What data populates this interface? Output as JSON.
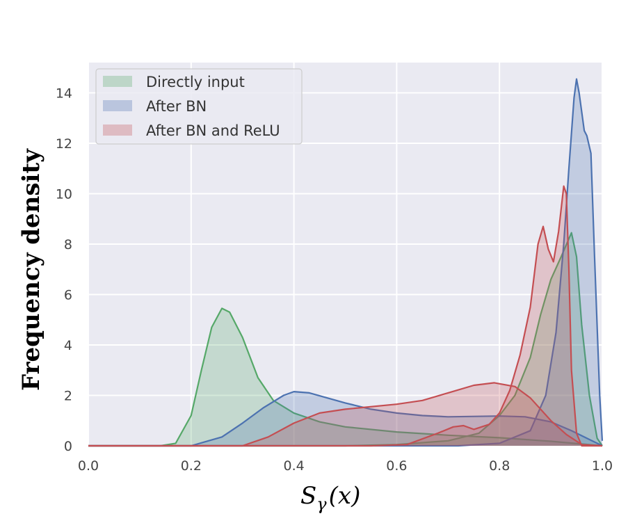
{
  "chart_data": {
    "type": "area",
    "xlabel": "S",
    "xlabel_subscript": "γ",
    "xlabel_suffix": "(x)",
    "ylabel": "Frequency density",
    "xlim": [
      0.0,
      1.0
    ],
    "ylim": [
      0,
      15.2
    ],
    "xticks": [
      "0.0",
      "0.2",
      "0.4",
      "0.6",
      "0.8",
      "1.0"
    ],
    "yticks": [
      "0",
      "2",
      "4",
      "6",
      "8",
      "10",
      "12",
      "14"
    ],
    "grid": true,
    "legend_position": "top-left",
    "background": "#eaeaf2",
    "series": [
      {
        "name": "Directly input",
        "color": "#55a868",
        "points": [
          [
            0.0,
            0
          ],
          [
            0.14,
            0
          ],
          [
            0.17,
            0.1
          ],
          [
            0.2,
            1.2
          ],
          [
            0.22,
            3.0
          ],
          [
            0.24,
            4.7
          ],
          [
            0.26,
            5.45
          ],
          [
            0.275,
            5.3
          ],
          [
            0.3,
            4.3
          ],
          [
            0.33,
            2.7
          ],
          [
            0.36,
            1.8
          ],
          [
            0.4,
            1.3
          ],
          [
            0.45,
            0.95
          ],
          [
            0.5,
            0.75
          ],
          [
            0.6,
            0.55
          ],
          [
            0.7,
            0.42
          ],
          [
            0.8,
            0.32
          ],
          [
            0.9,
            0.18
          ],
          [
            1.0,
            0.0
          ]
        ]
      },
      {
        "name": "Directly input",
        "color": "#55a868",
        "points": [
          [
            0.0,
            0
          ],
          [
            0.5,
            0
          ],
          [
            0.6,
            0.05
          ],
          [
            0.7,
            0.2
          ],
          [
            0.76,
            0.5
          ],
          [
            0.8,
            1.2
          ],
          [
            0.83,
            2.0
          ],
          [
            0.86,
            3.5
          ],
          [
            0.88,
            5.2
          ],
          [
            0.9,
            6.6
          ],
          [
            0.92,
            7.5
          ],
          [
            0.94,
            8.45
          ],
          [
            0.95,
            7.5
          ],
          [
            0.96,
            4.8
          ],
          [
            0.975,
            2.0
          ],
          [
            0.99,
            0.3
          ],
          [
            1.0,
            0
          ]
        ]
      },
      {
        "name": "After BN",
        "color": "#4c72b0",
        "points": [
          [
            0.0,
            0
          ],
          [
            0.2,
            0
          ],
          [
            0.26,
            0.35
          ],
          [
            0.3,
            0.9
          ],
          [
            0.34,
            1.5
          ],
          [
            0.38,
            2.0
          ],
          [
            0.4,
            2.15
          ],
          [
            0.43,
            2.1
          ],
          [
            0.5,
            1.7
          ],
          [
            0.55,
            1.45
          ],
          [
            0.6,
            1.3
          ],
          [
            0.65,
            1.2
          ],
          [
            0.7,
            1.15
          ],
          [
            0.8,
            1.18
          ],
          [
            0.85,
            1.15
          ],
          [
            0.9,
            0.95
          ],
          [
            0.94,
            0.6
          ],
          [
            0.97,
            0.3
          ],
          [
            1.0,
            0
          ]
        ]
      },
      {
        "name": "After BN",
        "color": "#4c72b0",
        "points": [
          [
            0.0,
            0
          ],
          [
            0.72,
            0
          ],
          [
            0.8,
            0.1
          ],
          [
            0.86,
            0.6
          ],
          [
            0.89,
            2.0
          ],
          [
            0.91,
            4.5
          ],
          [
            0.925,
            8.0
          ],
          [
            0.935,
            11.0
          ],
          [
            0.945,
            13.8
          ],
          [
            0.95,
            14.55
          ],
          [
            0.955,
            14.0
          ],
          [
            0.965,
            12.5
          ],
          [
            0.97,
            12.3
          ],
          [
            0.978,
            11.6
          ],
          [
            0.985,
            7.5
          ],
          [
            0.995,
            2.0
          ],
          [
            1.0,
            0.2
          ]
        ]
      },
      {
        "name": "After BN and ReLU",
        "color": "#c44e52",
        "points": [
          [
            0.0,
            0
          ],
          [
            0.3,
            0
          ],
          [
            0.35,
            0.35
          ],
          [
            0.4,
            0.9
          ],
          [
            0.45,
            1.3
          ],
          [
            0.5,
            1.45
          ],
          [
            0.6,
            1.65
          ],
          [
            0.65,
            1.8
          ],
          [
            0.7,
            2.1
          ],
          [
            0.75,
            2.4
          ],
          [
            0.79,
            2.5
          ],
          [
            0.83,
            2.35
          ],
          [
            0.86,
            1.9
          ],
          [
            0.9,
            1.0
          ],
          [
            0.93,
            0.45
          ],
          [
            0.96,
            0.05
          ],
          [
            1.0,
            0
          ]
        ]
      },
      {
        "name": "After BN and ReLU",
        "color": "#c44e52",
        "points": [
          [
            0.0,
            0
          ],
          [
            0.55,
            0
          ],
          [
            0.62,
            0.05
          ],
          [
            0.68,
            0.5
          ],
          [
            0.71,
            0.75
          ],
          [
            0.73,
            0.8
          ],
          [
            0.75,
            0.65
          ],
          [
            0.78,
            0.85
          ],
          [
            0.8,
            1.3
          ],
          [
            0.82,
            2.2
          ],
          [
            0.84,
            3.6
          ],
          [
            0.86,
            5.5
          ],
          [
            0.875,
            8.0
          ],
          [
            0.885,
            8.7
          ],
          [
            0.895,
            7.8
          ],
          [
            0.905,
            7.3
          ],
          [
            0.915,
            8.5
          ],
          [
            0.925,
            10.3
          ],
          [
            0.93,
            10.0
          ],
          [
            0.935,
            7.0
          ],
          [
            0.94,
            3.0
          ],
          [
            0.95,
            0.5
          ],
          [
            0.96,
            0
          ],
          [
            1.0,
            0
          ]
        ]
      }
    ],
    "legend": [
      {
        "name": "Directly input",
        "color": "#55a868"
      },
      {
        "name": "After BN",
        "color": "#4c72b0"
      },
      {
        "name": "After BN and ReLU",
        "color": "#c44e52"
      }
    ]
  }
}
